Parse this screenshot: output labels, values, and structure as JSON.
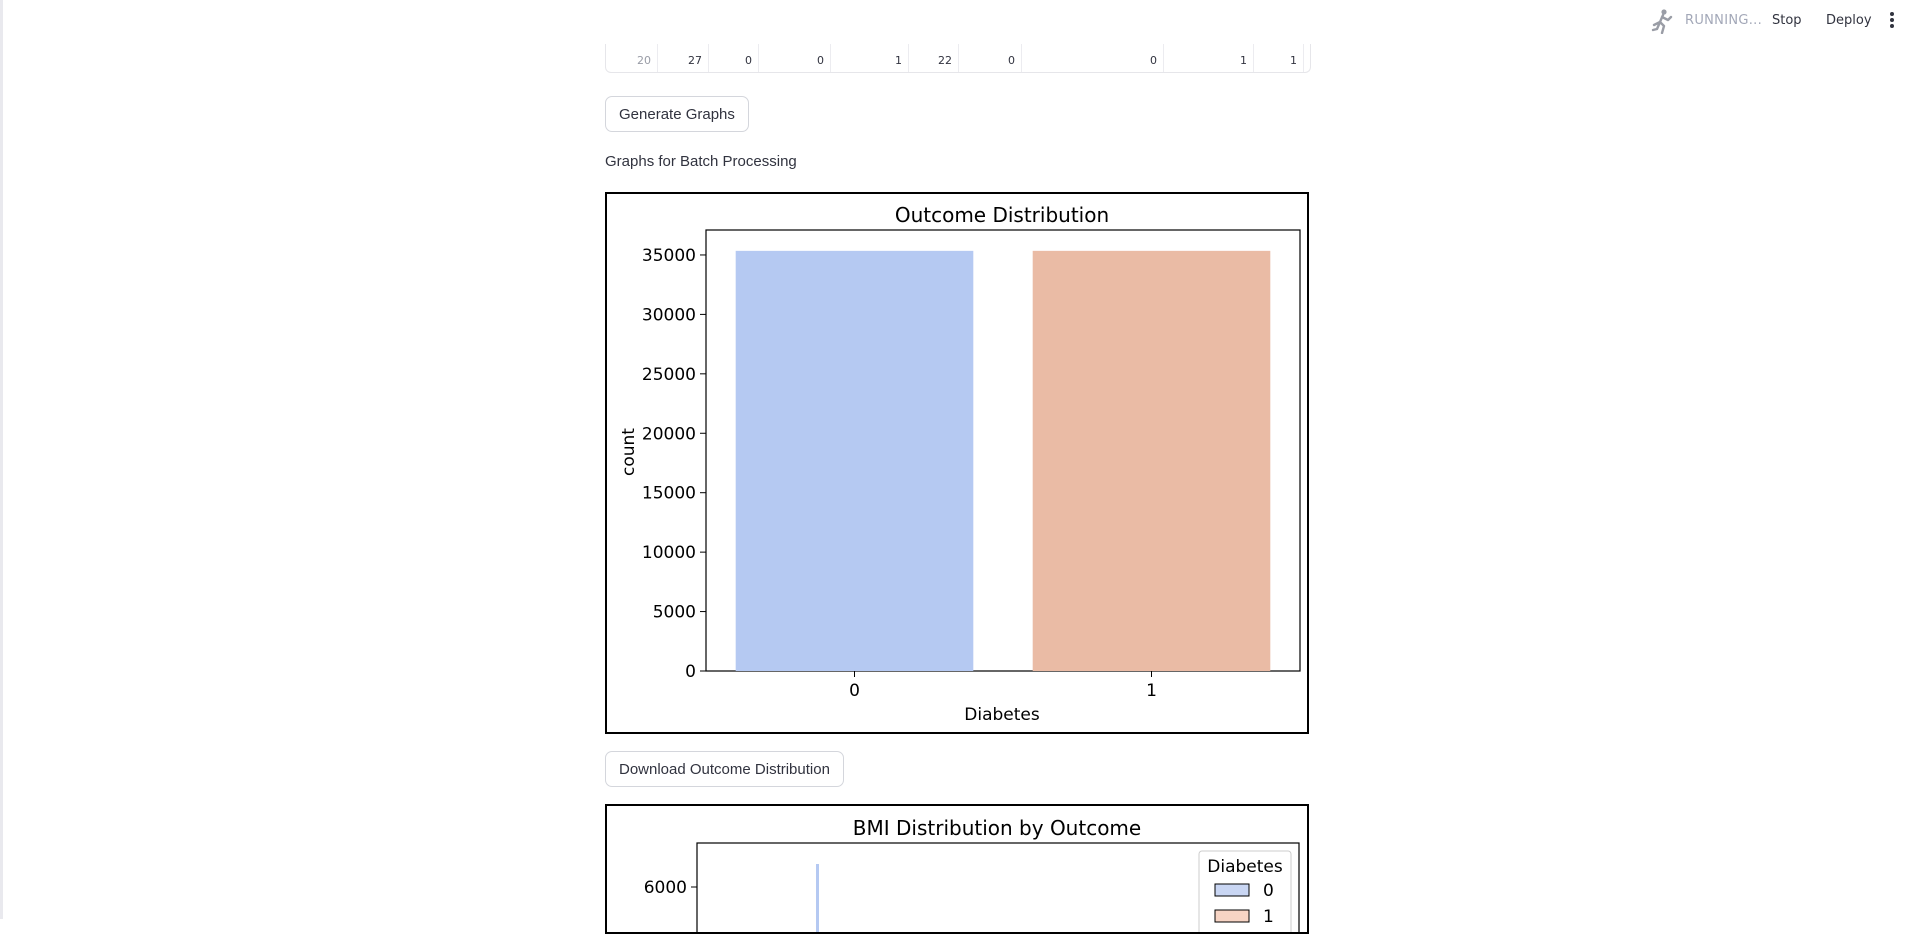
{
  "header": {
    "status": "RUNNING...",
    "stop_label": "Stop",
    "deploy_label": "Deploy",
    "icons": [
      "running-man-icon",
      "vertical-dots-menu-icon"
    ]
  },
  "dataframe": {
    "row": [
      "20",
      "27",
      "0",
      "0",
      "1",
      "22",
      "0",
      "0",
      "1",
      "1"
    ]
  },
  "generate_button": "Generate Graphs",
  "graphs_label": "Graphs for Batch Processing",
  "download_button": "Download Outcome Distribution",
  "chart_data": [
    {
      "type": "bar",
      "title": "Outcome Distribution",
      "xlabel": "Diabetes",
      "ylabel": "count",
      "categories": [
        "0",
        "1"
      ],
      "values": [
        35346,
        35346
      ],
      "ylim": [
        0,
        37100
      ],
      "yticks": [
        0,
        5000,
        10000,
        15000,
        20000,
        25000,
        30000,
        35000
      ],
      "colors": [
        "#b5c9f2",
        "#eabba5"
      ],
      "grid": false
    },
    {
      "type": "bar",
      "title": "BMI Distribution by Outcome",
      "visible_yticks": [
        6000
      ],
      "legend": {
        "title": "Diabetes",
        "entries": [
          "0",
          "1"
        ],
        "placement": "top-right"
      },
      "colors": [
        "#c9d6f3",
        "#f7d4c4"
      ]
    }
  ]
}
